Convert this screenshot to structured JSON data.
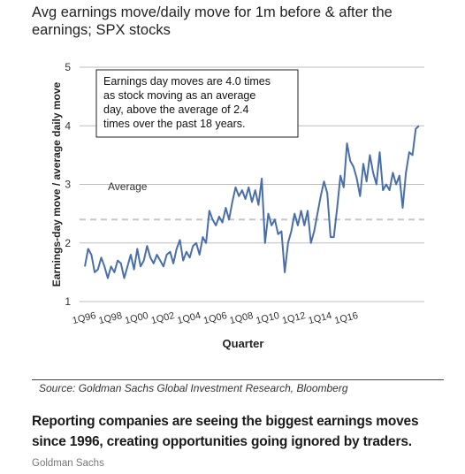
{
  "title": "Avg earnings move/daily move for 1m before & after the earnings; SPX stocks",
  "source": "Source: Goldman Sachs Global Investment Research, Bloomberg",
  "caption": "Reporting companies are seeing the biggest earnings moves since 1996, creating opportunities going ignored by traders.",
  "credit": "Goldman Sachs",
  "colors": {
    "line": "#4a6fa8",
    "average": "#c8c8c8",
    "grid": "#bdbdbd"
  },
  "chart_data": {
    "type": "line",
    "ylabel": "Earnings-day move / average daily move",
    "xlabel": "Quarter",
    "ylim": [
      1,
      5
    ],
    "yticks": [
      1,
      2,
      3,
      4,
      5
    ],
    "xticks": [
      "1Q96",
      "1Q98",
      "1Q00",
      "1Q02",
      "1Q04",
      "1Q06",
      "1Q08",
      "1Q10",
      "1Q12",
      "1Q14",
      "1Q16"
    ],
    "average": {
      "label": "Average",
      "value": 2.4
    },
    "annotation": "Earnings day moves are 4.0 times as stock moving as an average day, above the average of 2.4 times over the past 18 years.",
    "series": [
      {
        "x_start": "1Q96",
        "values": [
          1.6,
          1.9,
          1.8,
          1.5,
          1.55,
          1.75,
          1.6,
          1.4,
          1.6,
          1.5,
          1.7,
          1.65,
          1.4,
          1.6,
          1.8,
          1.55,
          1.9,
          1.6,
          1.7,
          1.95,
          1.75,
          1.65,
          1.8,
          1.7,
          1.6,
          1.8,
          1.85,
          1.65,
          1.9,
          2.05,
          1.7,
          1.85,
          1.75,
          1.95,
          2.0,
          1.8,
          2.1,
          2.0,
          2.55,
          2.4,
          2.3,
          2.45,
          2.35,
          2.6,
          2.4,
          2.7,
          2.95,
          2.8,
          2.9,
          2.75,
          2.95,
          2.7,
          2.9,
          2.65,
          3.1,
          2.0,
          2.5,
          2.3,
          2.4,
          2.15,
          2.2,
          1.5,
          2.0,
          2.2,
          2.5,
          2.3,
          2.55,
          2.3,
          2.55,
          2.0,
          2.2,
          2.5,
          2.8,
          3.05,
          2.85,
          2.1,
          2.1,
          2.6,
          3.15,
          2.95,
          3.7,
          3.4,
          3.3,
          3.1,
          2.8,
          3.35,
          3.05,
          3.5,
          3.2,
          3.0,
          3.55,
          2.9,
          3.0,
          2.9,
          3.2,
          3.0,
          3.15,
          2.6,
          3.2,
          3.55,
          3.5,
          3.95,
          4.0
        ]
      }
    ]
  }
}
